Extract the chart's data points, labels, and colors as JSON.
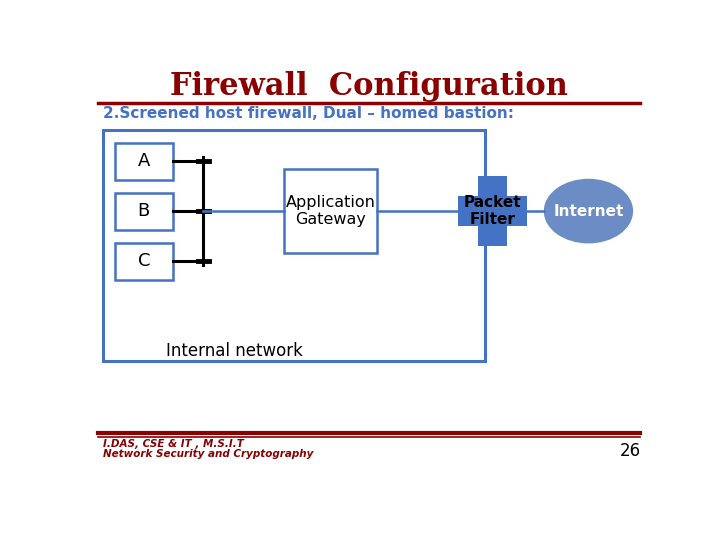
{
  "title": "Firewall  Configuration",
  "title_color": "#8B0000",
  "title_fontsize": 22,
  "subtitle": "2.Screened host firewall, Dual – homed bastion:",
  "subtitle_color": "#4472C4",
  "subtitle_fontsize": 11,
  "bg_color": "#FFFFFF",
  "red_line_color": "#8B0000",
  "footer_line1": "I.DAS, CSE & IT , M.S.I.T",
  "footer_line2": "Network Security and Cryptography",
  "footer_color": "#8B0000",
  "page_number": "26",
  "internal_box_color": "#4472C4",
  "nodes": [
    "A",
    "B",
    "C"
  ],
  "gateway_label": "Application\nGateway",
  "packet_label": "Packet\nFilter",
  "internet_label": "Internet",
  "packet_filter_color": "#4472C4",
  "internet_color": "#6B8CC4",
  "node_box_color": "#4472C4",
  "line_color": "#000000",
  "connect_line_color": "#4472C4"
}
